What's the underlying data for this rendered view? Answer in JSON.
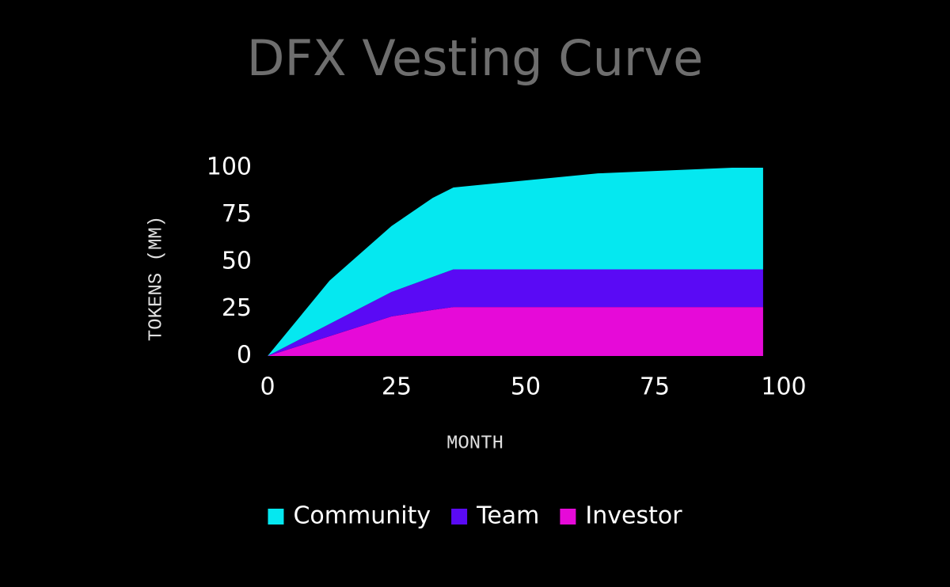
{
  "chart_data": {
    "type": "area",
    "title": "DFX Vesting Curve",
    "x_label": "MONTH",
    "y_label": "TOKENS (MM)",
    "x": [
      0,
      12,
      24,
      32,
      36,
      64,
      90,
      96
    ],
    "series": [
      {
        "name": "Community",
        "color": "#05e8f0",
        "values": [
          0,
          23,
          35,
          42,
          43.5,
          51,
          54,
          54
        ]
      },
      {
        "name": "Team",
        "color": "#5a0af5",
        "values": [
          0,
          6.5,
          13,
          17.5,
          20,
          20,
          20,
          20
        ]
      },
      {
        "name": "Investor",
        "color": "#e60ad8",
        "values": [
          0,
          10.5,
          21,
          24.5,
          26,
          26,
          26,
          26
        ]
      }
    ],
    "stacked": true,
    "xlim": [
      0,
      100
    ],
    "ylim": [
      0,
      100
    ],
    "xticks": [
      0,
      25,
      50,
      75,
      100
    ],
    "yticks": [
      0,
      25,
      50,
      75,
      100
    ],
    "grid": false,
    "legend": "bottom"
  }
}
